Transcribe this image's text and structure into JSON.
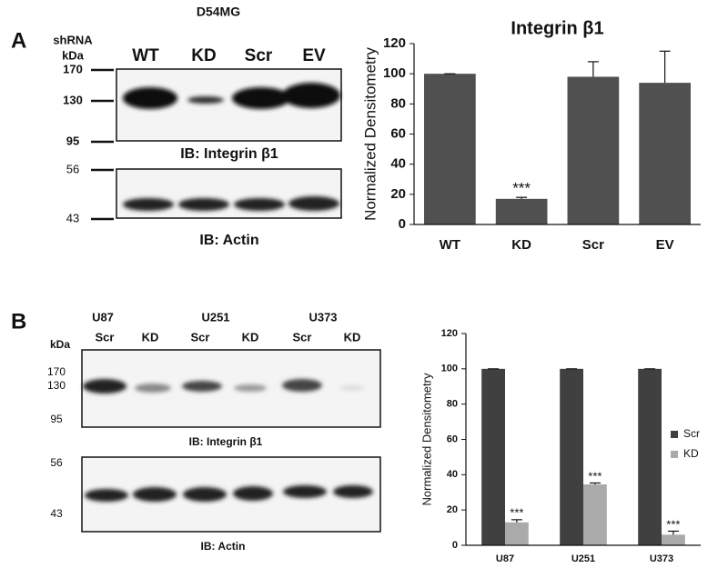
{
  "panel_a": {
    "label": "A",
    "cell_line": "D54MG",
    "shrna_label": "shRNA",
    "kda_label": "kDa",
    "lanes": [
      "WT",
      "KD",
      "Scr",
      "EV"
    ],
    "blot1": {
      "markers": [
        170,
        130,
        95
      ],
      "label": "IB: Integrin β1"
    },
    "blot2": {
      "markers": [
        56,
        43
      ],
      "label": "IB: Actin"
    }
  },
  "panel_b": {
    "label": "B",
    "kda_label": "kDa",
    "cell_lines": [
      "U87",
      "U251",
      "U373"
    ],
    "lanes": [
      "Scr",
      "KD",
      "Scr",
      "KD",
      "Scr",
      "KD"
    ],
    "blot1": {
      "markers": [
        170,
        130,
        95
      ],
      "label": "IB: Integrin β1"
    },
    "blot2": {
      "markers": [
        56,
        43
      ],
      "label": "IB: Actin"
    }
  },
  "chart_data": [
    {
      "type": "bar",
      "title": "Integrin β1",
      "y_label": "Normalized Densitometry",
      "categories": [
        "WT",
        "KD",
        "Scr",
        "EV"
      ],
      "values": [
        100,
        17,
        98,
        94
      ],
      "errors": [
        0,
        1,
        10,
        21
      ],
      "annotations": [
        null,
        "***",
        null,
        null
      ],
      "color": "#505050",
      "ylim": [
        0,
        120
      ],
      "yticks": [
        0,
        20,
        40,
        60,
        80,
        100,
        120
      ],
      "grid": false
    },
    {
      "type": "bar",
      "y_label": "Normalized Densitometry",
      "categories": [
        "U87",
        "U251",
        "U373"
      ],
      "series": [
        {
          "name": "Scr",
          "color": "#404040",
          "values": [
            100,
            100,
            100
          ],
          "errors": [
            0,
            0,
            0
          ],
          "annotations": [
            null,
            null,
            null
          ]
        },
        {
          "name": "KD",
          "color": "#aaaaaa",
          "values": [
            13,
            34.5,
            6
          ],
          "errors": [
            1.5,
            0.8,
            2
          ],
          "annotations": [
            "***",
            "***",
            "***"
          ]
        }
      ],
      "ylim": [
        0,
        120
      ],
      "yticks": [
        0,
        20,
        40,
        60,
        80,
        100,
        120
      ],
      "grid": false,
      "legend": "right"
    }
  ]
}
